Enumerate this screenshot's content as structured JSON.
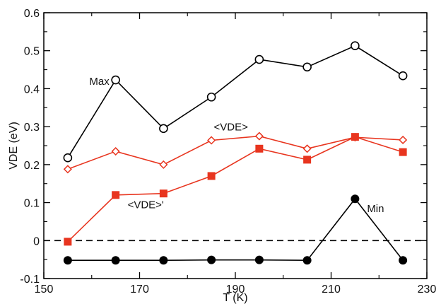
{
  "chart_data": {
    "type": "line",
    "xlabel": "T (K)",
    "ylabel": "VDE (eV)",
    "xlim": [
      150,
      230
    ],
    "ylim": [
      -0.1,
      0.6
    ],
    "x_ticks": [
      150,
      170,
      190,
      210,
      230
    ],
    "x_tick_labels": [
      "150",
      "170",
      "190",
      "210",
      "230"
    ],
    "y_ticks": [
      -0.1,
      0,
      0.1,
      0.2,
      0.3,
      0.4,
      0.5,
      0.6
    ],
    "y_tick_labels": [
      "-0.1",
      "0",
      "0.1",
      "0.2",
      "0.3",
      "0.4",
      "0.5",
      "0.6"
    ],
    "x_minor_step": 10,
    "y_minor_step": 0.05,
    "grid": false,
    "reference_line": {
      "y": 0,
      "style": "dashed",
      "color": "#000000"
    },
    "x": [
      155,
      165,
      175,
      185,
      195,
      205,
      215,
      225
    ],
    "series": [
      {
        "key": "max",
        "name": "Max",
        "color": "#000000",
        "marker": "open-circle",
        "values": [
          0.218,
          0.423,
          0.295,
          0.378,
          0.477,
          0.457,
          0.513,
          0.434
        ]
      },
      {
        "key": "avg",
        "name": "<VDE>",
        "color": "#e8351f",
        "marker": "open-diamond",
        "values": [
          0.188,
          0.235,
          0.2,
          0.264,
          0.275,
          0.242,
          0.272,
          0.265
        ]
      },
      {
        "key": "avgp",
        "name": "<VDE>'",
        "color": "#e8351f",
        "marker": "filled-square",
        "values": [
          -0.003,
          0.12,
          0.124,
          0.17,
          0.242,
          0.213,
          0.273,
          0.233
        ]
      },
      {
        "key": "min",
        "name": "Min",
        "color": "#000000",
        "marker": "filled-circle",
        "values": [
          -0.052,
          -0.052,
          -0.052,
          -0.051,
          -0.051,
          -0.052,
          0.11,
          -0.052
        ]
      }
    ],
    "annotations": [
      {
        "key": "max",
        "text": "Max",
        "x": 159.5,
        "y": 0.41
      },
      {
        "key": "avg",
        "text": "<VDE>",
        "x": 185.5,
        "y": 0.29
      },
      {
        "key": "avgp",
        "text": "<VDE>'",
        "x": 167.5,
        "y": 0.085
      },
      {
        "key": "min",
        "text": "Min",
        "x": 217.5,
        "y": 0.075
      }
    ]
  }
}
